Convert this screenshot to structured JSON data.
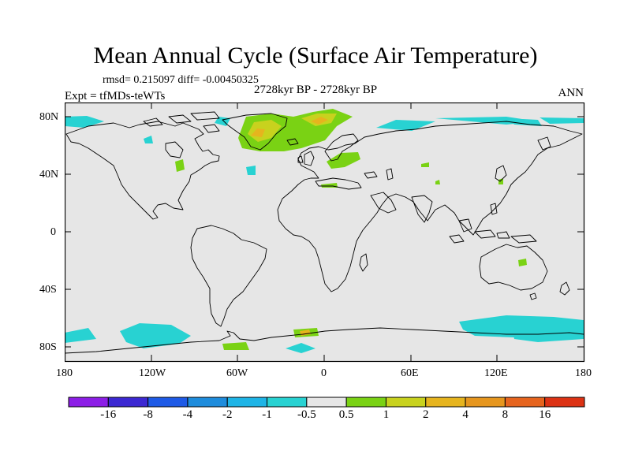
{
  "title": "Mean Annual Cycle (Surface Air Temperature)",
  "stats": "rmsd= 0.215097 diff= -0.00450325",
  "experiment": "Expt = tfMDs-teWTs",
  "period": "2728kyr BP - 2728kyr BP",
  "season": "ANN",
  "lat_ticks": [
    "80N",
    "40N",
    "0",
    "40S",
    "80S"
  ],
  "lon_ticks": [
    "180",
    "120W",
    "60W",
    "0",
    "60E",
    "120E",
    "180"
  ],
  "colorbar": {
    "labels": [
      "-16",
      "-8",
      "-4",
      "-2",
      "-1",
      "-0.5",
      "0.5",
      "1",
      "2",
      "4",
      "8",
      "16"
    ],
    "colors": [
      "#8c1ee6",
      "#3c28d2",
      "#1e5ae6",
      "#1e8cdc",
      "#1eb4e6",
      "#28d2d2",
      "#e6e6e6",
      "#7ad214",
      "#c8d21e",
      "#e6b41e",
      "#e6961e",
      "#e6641e",
      "#dc3214"
    ]
  },
  "colors": {
    "land_background": "#e6e6e6",
    "cyan_anomaly": "#28d2d2",
    "green_anomaly": "#7ad214",
    "yellow_anomaly": "#c8d21e",
    "orange_anomaly": "#e6b41e"
  }
}
